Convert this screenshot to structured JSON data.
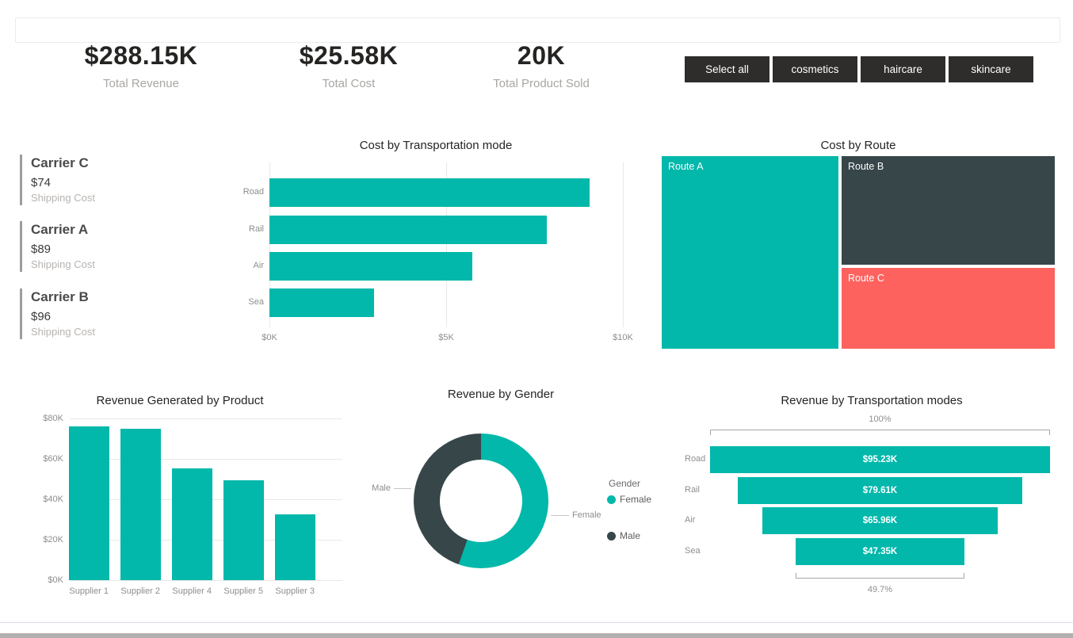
{
  "colors": {
    "teal": "#01B8AA",
    "dark_slate": "#374649",
    "coral": "#FD625E",
    "button_bg": "#2e2d2c",
    "title_text": "#252423",
    "axis_text": "#8f8d8d",
    "muted_text": "#a9a7a4"
  },
  "kpis": [
    {
      "value": "$288.15K",
      "label": "Total Revenue"
    },
    {
      "value": "$25.58K",
      "label": "Total Cost"
    },
    {
      "value": "20K",
      "label": "Total Product Sold"
    }
  ],
  "slicer": {
    "buttons": [
      "Select all",
      "cosmetics",
      "haircare",
      "skincare"
    ]
  },
  "carrier_cards": [
    {
      "title": "Carrier C",
      "value": "$74",
      "label": "Shipping Cost"
    },
    {
      "title": "Carrier A",
      "value": "$89",
      "label": "Shipping Cost"
    },
    {
      "title": "Carrier B",
      "value": "$96",
      "label": "Shipping Cost"
    }
  ],
  "chart_data": [
    {
      "id": "cost_by_mode",
      "type": "bar",
      "orientation": "horizontal",
      "title": "Cost by Transportation mode",
      "categories": [
        "Road",
        "Rail",
        "Air",
        "Sea"
      ],
      "values": [
        9.05,
        7.84,
        5.73,
        2.96
      ],
      "unit": "$K",
      "xlim": [
        0,
        10
      ],
      "x_tick_values": [
        0,
        5,
        10
      ],
      "x_tick_labels": [
        "$0K",
        "$5K",
        "$10K"
      ],
      "grid": true,
      "color": "#01B8AA"
    },
    {
      "id": "cost_by_route",
      "type": "treemap",
      "title": "Cost by Route",
      "unit": "$K",
      "items": [
        {
          "label": "Route A",
          "value": 11.6,
          "color": "#01B8AA"
        },
        {
          "label": "Route B",
          "value": 8.0,
          "color": "#374649"
        },
        {
          "label": "Route C",
          "value": 6.0,
          "color": "#FD625E"
        }
      ]
    },
    {
      "id": "revenue_by_product",
      "type": "bar",
      "orientation": "vertical",
      "title": "Revenue Generated by Product",
      "categories": [
        "Supplier 1",
        "Supplier 2",
        "Supplier 4",
        "Supplier 5",
        "Supplier 3"
      ],
      "values": [
        76.1,
        74.8,
        55.2,
        49.6,
        32.5
      ],
      "unit": "$K",
      "ylim": [
        0,
        80
      ],
      "y_tick_values": [
        0,
        20,
        40,
        60,
        80
      ],
      "y_tick_labels": [
        "$0K",
        "$20K",
        "$40K",
        "$60K",
        "$80K"
      ],
      "grid": true,
      "color": "#01B8AA"
    },
    {
      "id": "revenue_by_gender",
      "type": "pie",
      "title": "Revenue by Gender",
      "legend_title": "Gender",
      "legend_position": "right",
      "slices": [
        {
          "label": "Female",
          "pct": 55.4,
          "color": "#01B8AA"
        },
        {
          "label": "Male",
          "pct": 44.6,
          "color": "#374649"
        }
      ]
    },
    {
      "id": "revenue_by_mode",
      "type": "funnel",
      "title": "Revenue by Transportation modes",
      "categories": [
        "Road",
        "Rail",
        "Air",
        "Sea"
      ],
      "values": [
        95.23,
        79.61,
        65.96,
        47.35
      ],
      "value_labels": [
        "$95.23K",
        "$79.61K",
        "$65.96K",
        "$47.35K"
      ],
      "unit": "$K",
      "top_pct_label": "100%",
      "bottom_pct_label": "49.7%",
      "color": "#01B8AA"
    }
  ]
}
